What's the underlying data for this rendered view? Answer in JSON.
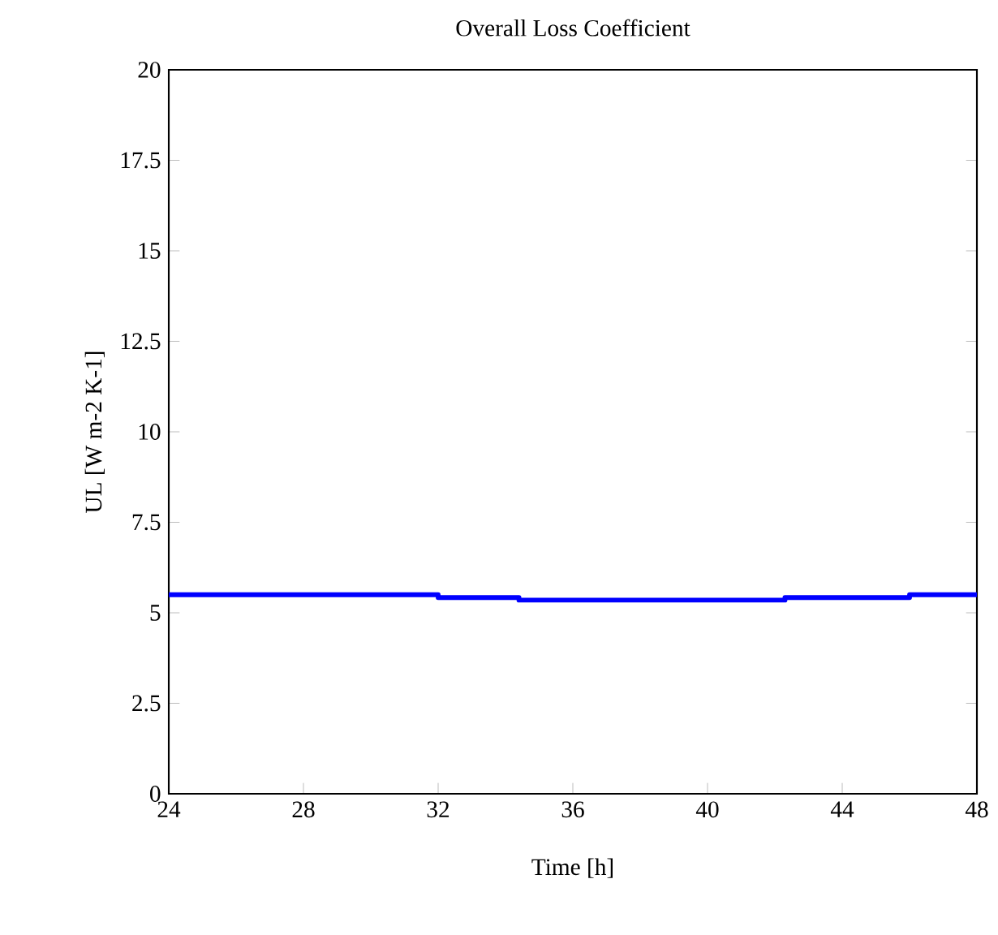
{
  "chart_data": {
    "type": "line",
    "title": "Overall Loss Coefficient",
    "xlabel": "Time [h]",
    "ylabel": "UL [W m-2 K-1]",
    "x": [
      24,
      32,
      32,
      34.4,
      34.4,
      42.3,
      42.3,
      46,
      46,
      48
    ],
    "series": [
      {
        "color": "#0000ff",
        "values": [
          5.5,
          5.5,
          5.42,
          5.42,
          5.35,
          5.35,
          5.42,
          5.42,
          5.5,
          5.5
        ]
      }
    ],
    "xlim": [
      24,
      48
    ],
    "xticks": [
      24,
      28,
      32,
      36,
      40,
      44,
      48
    ],
    "ylim": [
      0,
      20
    ],
    "yticks": [
      0,
      2.5,
      5,
      7.5,
      10,
      12.5,
      15,
      17.5,
      20
    ],
    "grid": false,
    "legend": false,
    "marker": "none",
    "line_style": "solid"
  }
}
